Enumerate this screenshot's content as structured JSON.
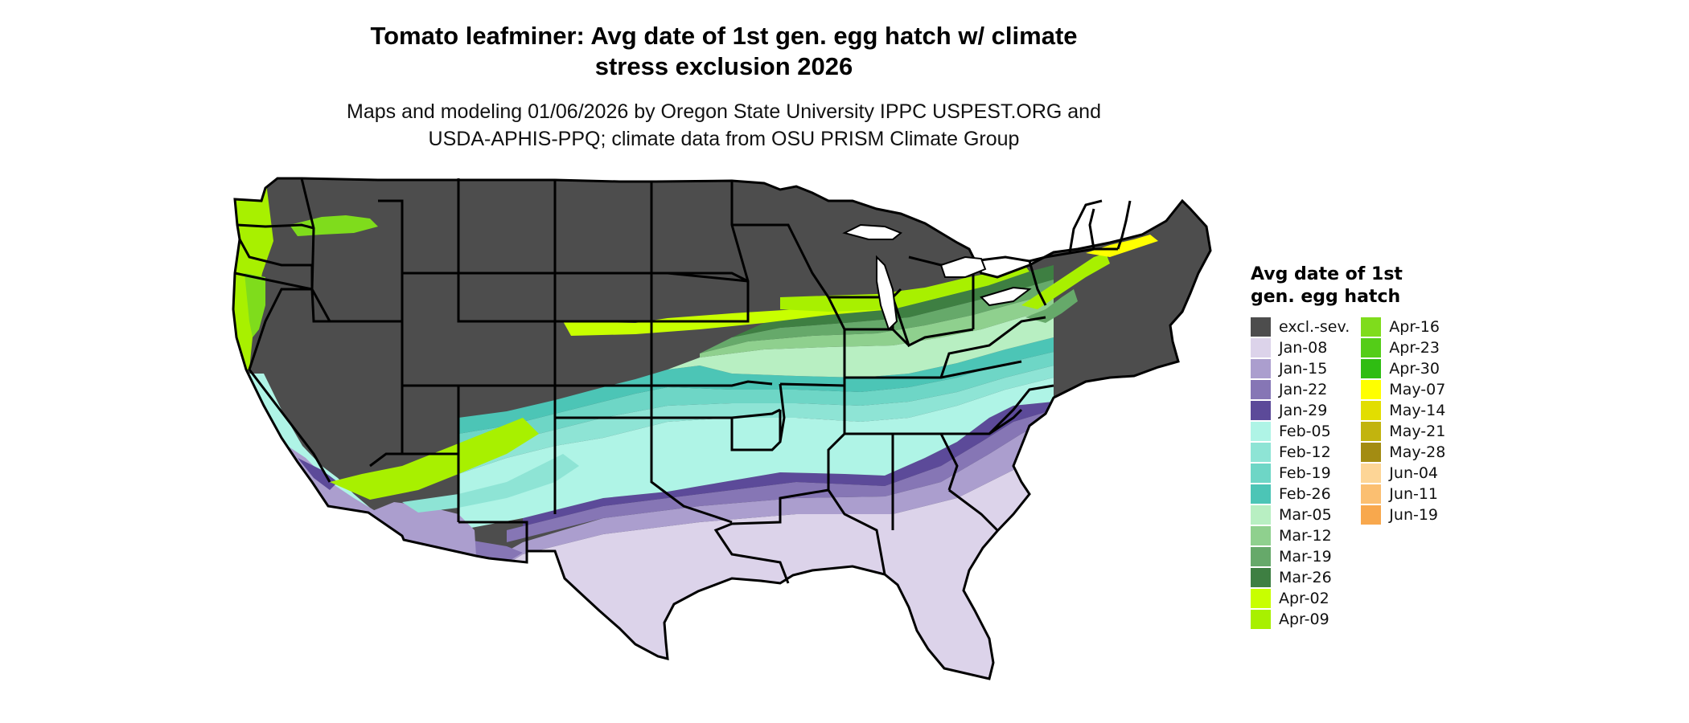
{
  "title_line1": "Tomato leafminer: Avg date of 1st gen. egg hatch w/ climate",
  "title_line2": "stress exclusion 2026",
  "subtitle_line1": "Maps and modeling 01/06/2026 by Oregon State University IPPC USPEST.ORG and",
  "subtitle_line2": "USDA-APHIS-PPQ; climate data from OSU PRISM Climate Group",
  "legend": {
    "title_line1": "Avg date of 1st",
    "title_line2": "gen. egg hatch",
    "col1": [
      {
        "label": "excl.-sev.",
        "color": "#4d4d4d"
      },
      {
        "label": "Jan-08",
        "color": "#dcd3ea"
      },
      {
        "label": "Jan-15",
        "color": "#ab9ece"
      },
      {
        "label": "Jan-22",
        "color": "#8676b5"
      },
      {
        "label": "Jan-29",
        "color": "#5c4a99"
      },
      {
        "label": "Feb-05",
        "color": "#aff4e6"
      },
      {
        "label": "Feb-12",
        "color": "#8ee4d5"
      },
      {
        "label": "Feb-19",
        "color": "#6ed6c6"
      },
      {
        "label": "Feb-26",
        "color": "#4cc5b6"
      },
      {
        "label": "Mar-05",
        "color": "#b8efc2"
      },
      {
        "label": "Mar-12",
        "color": "#8fd08e"
      },
      {
        "label": "Mar-19",
        "color": "#66a96a"
      },
      {
        "label": "Mar-26",
        "color": "#3e7f42"
      },
      {
        "label": "Apr-02",
        "color": "#c8ff00"
      },
      {
        "label": "Apr-09",
        "color": "#a8f000"
      }
    ],
    "col2": [
      {
        "label": "Apr-16",
        "color": "#7fdc1c"
      },
      {
        "label": "Apr-23",
        "color": "#54cd18"
      },
      {
        "label": "Apr-30",
        "color": "#2fbd12"
      },
      {
        "label": "May-07",
        "color": "#ffff00"
      },
      {
        "label": "May-14",
        "color": "#e2de00"
      },
      {
        "label": "May-21",
        "color": "#c2b40e"
      },
      {
        "label": "May-28",
        "color": "#a38c12"
      },
      {
        "label": "Jun-04",
        "color": "#fdd596"
      },
      {
        "label": "Jun-11",
        "color": "#fbbf71"
      },
      {
        "label": "Jun-19",
        "color": "#f8a84d"
      }
    ]
  }
}
